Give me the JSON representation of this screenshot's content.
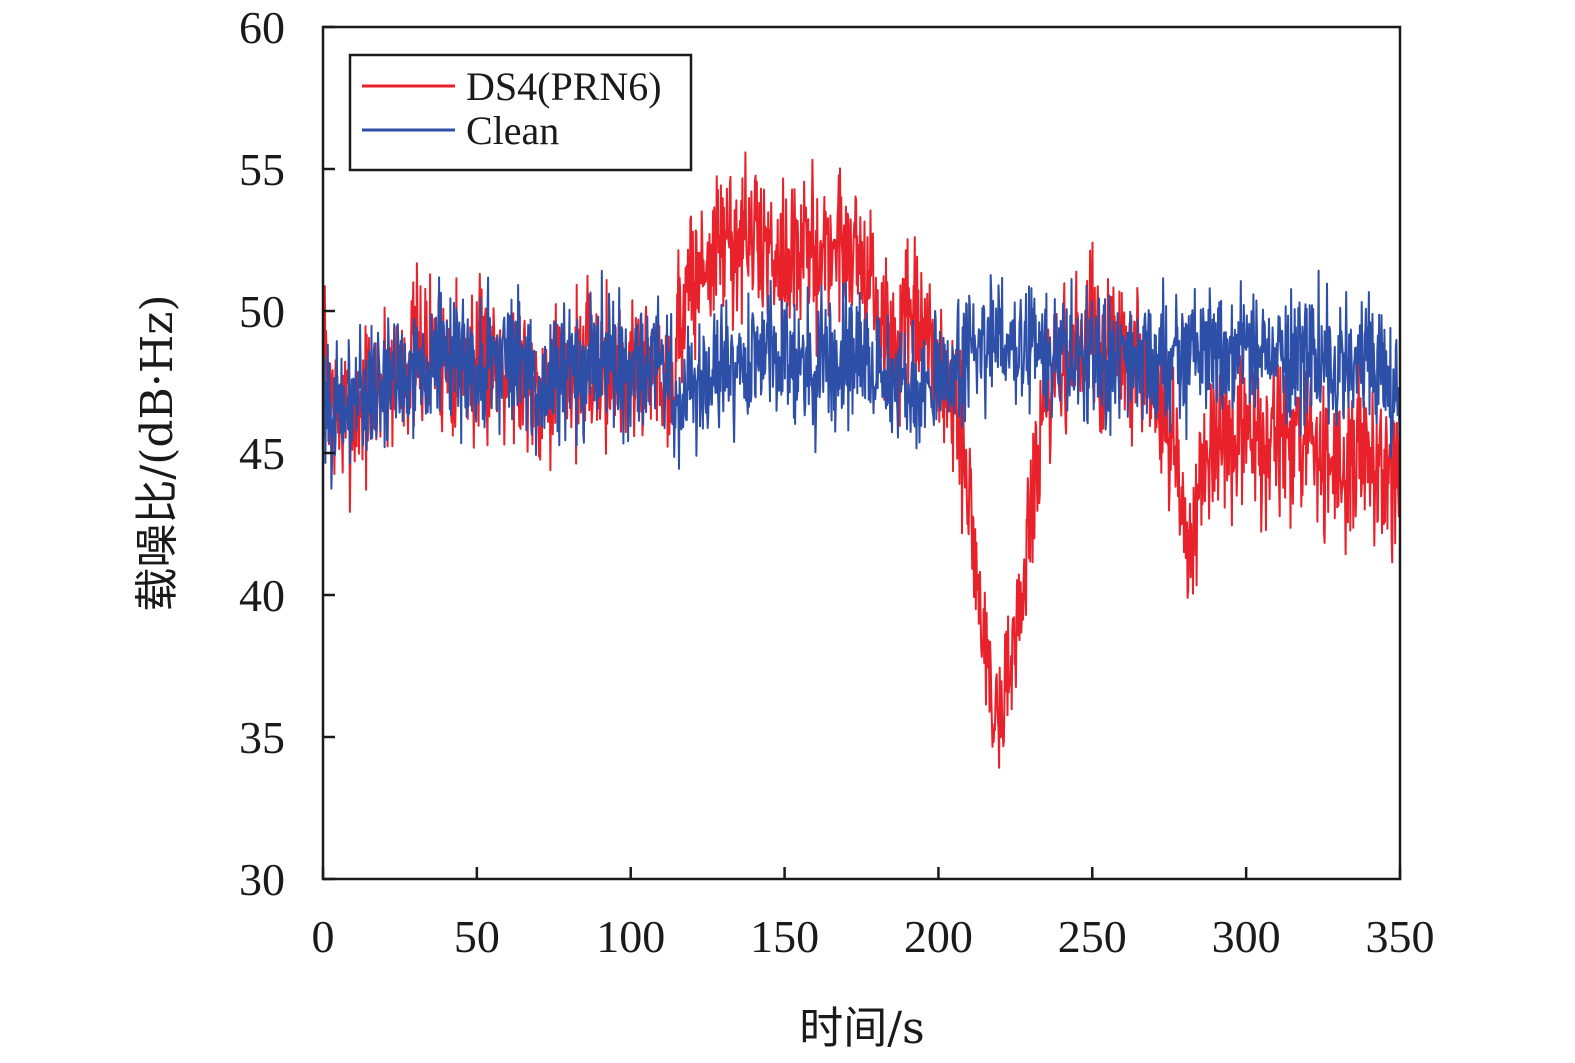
{
  "chart_data": {
    "type": "line",
    "xlabel": "时间/s",
    "ylabel": "载噪比/(dB·Hz)",
    "xlim": [
      0,
      350
    ],
    "ylim": [
      30,
      60
    ],
    "x_ticks": [
      "0",
      "50",
      "100",
      "150",
      "200",
      "250",
      "300",
      "350"
    ],
    "y_ticks": [
      "30",
      "35",
      "40",
      "45",
      "50",
      "55",
      "60"
    ],
    "grid": false,
    "legend_position": "top-left",
    "series": [
      {
        "name": "DS4(PRN6)",
        "color": "#e8212b",
        "x": [
          0,
          5,
          10,
          20,
          30,
          40,
          50,
          60,
          70,
          80,
          90,
          100,
          110,
          114,
          116,
          120,
          130,
          140,
          150,
          160,
          170,
          175,
          180,
          185,
          190,
          195,
          200,
          205,
          208,
          212,
          215,
          218,
          220,
          222,
          225,
          228,
          230,
          235,
          240,
          250,
          260,
          270,
          275,
          280,
          282,
          285,
          290,
          300,
          310,
          320,
          330,
          340,
          350
        ],
        "y": [
          48.5,
          46.0,
          46.5,
          47.5,
          48.5,
          48.5,
          48.0,
          48.5,
          47.5,
          48.0,
          48.0,
          48.0,
          48.0,
          47.5,
          50.0,
          51.0,
          52.5,
          52.5,
          52.0,
          52.0,
          52.5,
          52.0,
          50.0,
          48.5,
          49.5,
          49.0,
          48.0,
          46.5,
          45.0,
          41.5,
          38.0,
          36.0,
          35.5,
          37.0,
          38.5,
          40.5,
          43.0,
          46.5,
          48.0,
          49.0,
          48.5,
          47.0,
          45.5,
          42.5,
          42.0,
          44.5,
          45.0,
          45.5,
          45.5,
          45.0,
          44.5,
          45.0,
          44.5
        ]
      },
      {
        "name": "Clean",
        "color": "#2e4fa8",
        "x": [
          0,
          5,
          10,
          20,
          30,
          40,
          50,
          60,
          70,
          80,
          90,
          100,
          110,
          115,
          120,
          130,
          140,
          150,
          160,
          170,
          180,
          190,
          195,
          200,
          205,
          210,
          220,
          230,
          240,
          250,
          260,
          270,
          280,
          290,
          300,
          310,
          320,
          330,
          340,
          350
        ],
        "y": [
          47.5,
          46.0,
          47.0,
          47.5,
          48.0,
          48.5,
          48.0,
          48.5,
          47.5,
          48.0,
          48.5,
          48.0,
          48.5,
          47.0,
          47.0,
          48.0,
          48.5,
          48.5,
          48.0,
          48.5,
          48.0,
          47.5,
          47.0,
          48.0,
          47.5,
          48.5,
          49.0,
          48.5,
          48.5,
          48.5,
          48.5,
          48.0,
          48.5,
          48.5,
          48.5,
          48.5,
          48.5,
          48.0,
          48.5,
          47.0
        ]
      }
    ]
  }
}
